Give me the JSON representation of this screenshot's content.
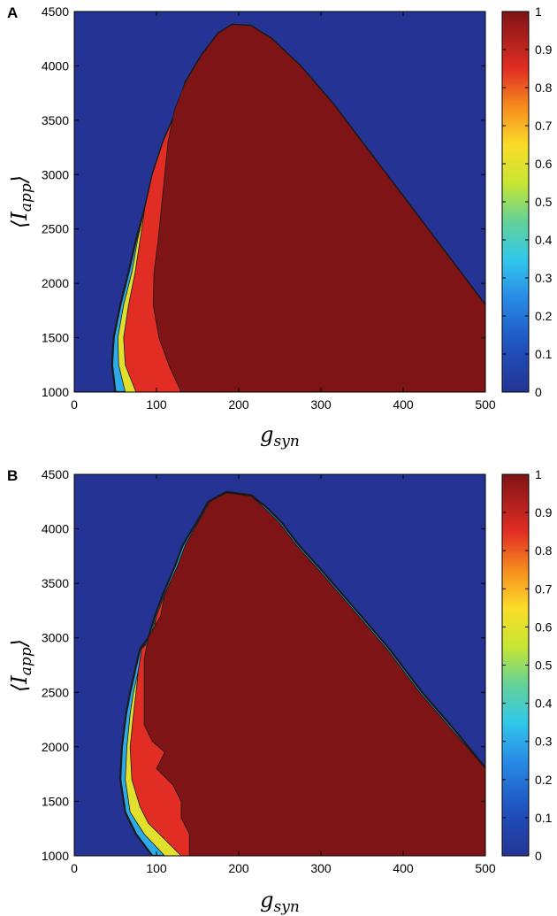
{
  "chart_data": [
    {
      "panel": "A",
      "type": "heatmap",
      "xlabel": "g",
      "xlabel_sub": "syn",
      "ylabel_main": "I",
      "ylabel_sub": "app",
      "xlim": [
        0,
        500
      ],
      "ylim": [
        1000,
        4500
      ],
      "xticks": [
        "0",
        "100",
        "200",
        "300",
        "400",
        "500"
      ],
      "yticks": [
        "1000",
        "1500",
        "2000",
        "2500",
        "3000",
        "3500",
        "4000",
        "4500"
      ],
      "colorbar": {
        "range": [
          0,
          1
        ],
        "ticks": [
          "0",
          "0.1",
          "0.2",
          "0.3",
          "0.4",
          "0.5",
          "0.6",
          "0.7",
          "0.8",
          "0.9",
          "1"
        ]
      },
      "colors": {
        "zero": "#253494",
        "one": "#7f1416",
        "contour": "#1a1a1a"
      },
      "regions": [
        {
          "value": 1.0,
          "boundary": [
            [
              130,
              1000
            ],
            [
              115,
              1250
            ],
            [
              103,
              1500
            ],
            [
              96,
              1800
            ],
            [
              97,
              2100
            ],
            [
              102,
              2400
            ],
            [
              106,
              2700
            ],
            [
              110,
              3000
            ],
            [
              114,
              3300
            ],
            [
              122,
              3600
            ],
            [
              135,
              3850
            ],
            [
              155,
              4100
            ],
            [
              175,
              4300
            ],
            [
              192,
              4380
            ],
            [
              215,
              4370
            ],
            [
              240,
              4250
            ],
            [
              275,
              4000
            ],
            [
              315,
              3650
            ],
            [
              355,
              3250
            ],
            [
              395,
              2850
            ],
            [
              430,
              2500
            ],
            [
              465,
              2150
            ],
            [
              500,
              1800
            ],
            [
              500,
              1000
            ]
          ]
        },
        {
          "value": 0.85,
          "boundary": [
            [
              75,
              1000
            ],
            [
              62,
              1250
            ],
            [
              60,
              1500
            ],
            [
              66,
              1800
            ],
            [
              74,
              2100
            ],
            [
              80,
              2400
            ],
            [
              86,
              2700
            ],
            [
              95,
              3000
            ],
            [
              108,
              3300
            ],
            [
              125,
              3600
            ],
            [
              135,
              3850
            ],
            [
              155,
              4100
            ],
            [
              175,
              4300
            ],
            [
              192,
              4380
            ],
            [
              215,
              4370
            ],
            [
              240,
              4250
            ],
            [
              275,
              4000
            ],
            [
              315,
              3650
            ],
            [
              355,
              3250
            ],
            [
              395,
              2850
            ],
            [
              430,
              2500
            ],
            [
              465,
              2150
            ],
            [
              500,
              1800
            ],
            [
              500,
              1000
            ]
          ]
        },
        {
          "value": 0.6,
          "boundary": [
            [
              62,
              1000
            ],
            [
              54,
              1250
            ],
            [
              53,
              1500
            ],
            [
              60,
              1800
            ],
            [
              70,
              2100
            ],
            [
              77,
              2400
            ],
            [
              86,
              2700
            ],
            [
              95,
              3000
            ],
            [
              108,
              3300
            ],
            [
              125,
              3600
            ],
            [
              135,
              3850
            ],
            [
              155,
              4100
            ],
            [
              175,
              4300
            ],
            [
              192,
              4380
            ],
            [
              215,
              4370
            ],
            [
              240,
              4250
            ],
            [
              275,
              4000
            ],
            [
              315,
              3650
            ],
            [
              355,
              3250
            ],
            [
              395,
              2850
            ],
            [
              430,
              2500
            ],
            [
              465,
              2150
            ],
            [
              500,
              1800
            ],
            [
              500,
              1000
            ]
          ]
        },
        {
          "value": 0.3,
          "boundary": [
            [
              50,
              1000
            ],
            [
              46,
              1250
            ],
            [
              48,
              1500
            ],
            [
              56,
              1800
            ],
            [
              66,
              2100
            ],
            [
              75,
              2400
            ],
            [
              86,
              2700
            ],
            [
              95,
              3000
            ],
            [
              108,
              3300
            ],
            [
              125,
              3600
            ],
            [
              135,
              3850
            ],
            [
              155,
              4100
            ],
            [
              175,
              4300
            ],
            [
              192,
              4380
            ],
            [
              215,
              4370
            ],
            [
              240,
              4250
            ],
            [
              275,
              4000
            ],
            [
              315,
              3650
            ],
            [
              355,
              3250
            ],
            [
              395,
              2850
            ],
            [
              430,
              2500
            ],
            [
              465,
              2150
            ],
            [
              500,
              1800
            ],
            [
              500,
              1000
            ]
          ]
        }
      ]
    },
    {
      "panel": "B",
      "type": "heatmap",
      "xlabel": "g",
      "xlabel_sub": "syn",
      "ylabel_main": "I",
      "ylabel_sub": "app",
      "xlim": [
        0,
        500
      ],
      "ylim": [
        1000,
        4500
      ],
      "xticks": [
        "0",
        "100",
        "200",
        "300",
        "400",
        "500"
      ],
      "yticks": [
        "1000",
        "1500",
        "2000",
        "2500",
        "3000",
        "3500",
        "4000",
        "4500"
      ],
      "colorbar": {
        "range": [
          0,
          1
        ],
        "ticks": [
          "0",
          "0.1",
          "0.2",
          "0.3",
          "0.4",
          "0.5",
          "0.6",
          "0.7",
          "0.8",
          "0.9",
          "1"
        ]
      },
      "colors": {
        "zero": "#253494",
        "one": "#7f1416",
        "contour": "#1a1a1a"
      },
      "regions": [
        {
          "value": 1.0,
          "boundary": [
            [
              140,
              1000
            ],
            [
              140,
              1200
            ],
            [
              130,
              1350
            ],
            [
              130,
              1500
            ],
            [
              120,
              1650
            ],
            [
              100,
              1800
            ],
            [
              110,
              1950
            ],
            [
              95,
              2050
            ],
            [
              85,
              2200
            ],
            [
              85,
              2500
            ],
            [
              85,
              2800
            ],
            [
              90,
              3000
            ],
            [
              105,
              3200
            ],
            [
              110,
              3400
            ],
            [
              125,
              3650
            ],
            [
              135,
              3850
            ],
            [
              150,
              4050
            ],
            [
              165,
              4250
            ],
            [
              185,
              4330
            ],
            [
              215,
              4300
            ],
            [
              230,
              4200
            ],
            [
              250,
              4050
            ],
            [
              270,
              3850
            ],
            [
              300,
              3600
            ],
            [
              340,
              3250
            ],
            [
              380,
              2900
            ],
            [
              420,
              2500
            ],
            [
              460,
              2150
            ],
            [
              500,
              1800
            ],
            [
              500,
              1000
            ]
          ]
        },
        {
          "value": 0.85,
          "boundary": [
            [
              130,
              1000
            ],
            [
              110,
              1150
            ],
            [
              90,
              1300
            ],
            [
              80,
              1450
            ],
            [
              70,
              1700
            ],
            [
              68,
              2000
            ],
            [
              72,
              2300
            ],
            [
              75,
              2500
            ],
            [
              78,
              2700
            ],
            [
              82,
              2900
            ],
            [
              95,
              3000
            ],
            [
              100,
              3200
            ],
            [
              110,
              3400
            ],
            [
              125,
              3650
            ],
            [
              135,
              3850
            ],
            [
              150,
              4050
            ],
            [
              165,
              4250
            ],
            [
              185,
              4330
            ],
            [
              215,
              4300
            ],
            [
              230,
              4200
            ],
            [
              250,
              4050
            ],
            [
              270,
              3850
            ],
            [
              300,
              3600
            ],
            [
              340,
              3250
            ],
            [
              380,
              2900
            ],
            [
              420,
              2500
            ],
            [
              460,
              2150
            ],
            [
              500,
              1800
            ],
            [
              500,
              1000
            ]
          ]
        },
        {
          "value": 0.6,
          "boundary": [
            [
              110,
              1000
            ],
            [
              85,
              1200
            ],
            [
              68,
              1400
            ],
            [
              62,
              1700
            ],
            [
              64,
              2000
            ],
            [
              68,
              2300
            ],
            [
              72,
              2500
            ],
            [
              78,
              2700
            ],
            [
              82,
              2900
            ],
            [
              92,
              3000
            ],
            [
              100,
              3200
            ],
            [
              110,
              3400
            ],
            [
              125,
              3650
            ],
            [
              135,
              3850
            ],
            [
              150,
              4050
            ],
            [
              165,
              4250
            ],
            [
              185,
              4330
            ],
            [
              215,
              4300
            ],
            [
              230,
              4200
            ],
            [
              250,
              4050
            ],
            [
              270,
              3850
            ],
            [
              300,
              3600
            ],
            [
              340,
              3250
            ],
            [
              380,
              2900
            ],
            [
              420,
              2500
            ],
            [
              460,
              2150
            ],
            [
              500,
              1800
            ],
            [
              500,
              1000
            ]
          ]
        },
        {
          "value": 0.3,
          "boundary": [
            [
              95,
              1000
            ],
            [
              75,
              1200
            ],
            [
              62,
              1400
            ],
            [
              56,
              1700
            ],
            [
              58,
              2000
            ],
            [
              63,
              2300
            ],
            [
              68,
              2500
            ],
            [
              74,
              2700
            ],
            [
              80,
              2900
            ],
            [
              90,
              3000
            ],
            [
              98,
              3200
            ],
            [
              108,
              3400
            ],
            [
              122,
              3650
            ],
            [
              132,
              3850
            ],
            [
              148,
              4050
            ],
            [
              163,
              4250
            ],
            [
              185,
              4340
            ],
            [
              215,
              4310
            ],
            [
              232,
              4210
            ],
            [
              252,
              4060
            ],
            [
              272,
              3860
            ],
            [
              302,
              3610
            ],
            [
              342,
              3260
            ],
            [
              382,
              2910
            ],
            [
              422,
              2510
            ],
            [
              462,
              2160
            ],
            [
              500,
              1810
            ],
            [
              500,
              1000
            ]
          ]
        }
      ]
    }
  ]
}
